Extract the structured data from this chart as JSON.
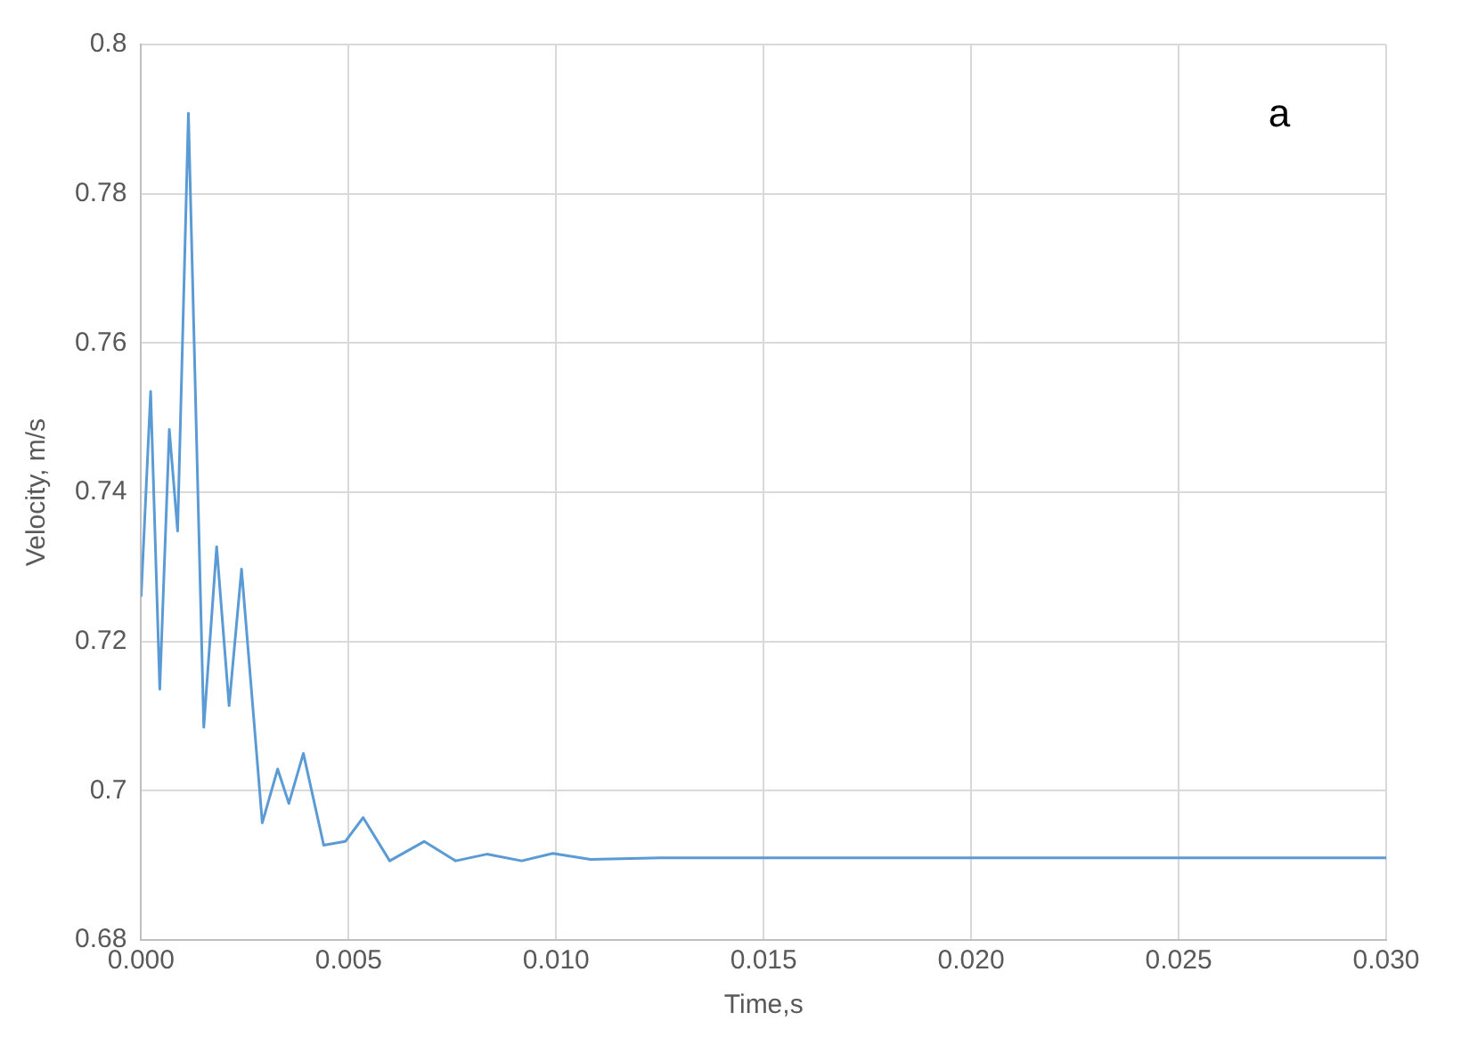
{
  "chart_data": {
    "type": "line",
    "xlabel": "Time,s",
    "ylabel": "Velocity, m/s",
    "annotations": [
      "a"
    ],
    "x": [
      0,
      0.00023,
      0.00045,
      0.00068,
      0.00088,
      0.00114,
      0.00151,
      0.00182,
      0.00212,
      0.00242,
      0.00292,
      0.00329,
      0.00356,
      0.00391,
      0.0044,
      0.00492,
      0.00535,
      0.00599,
      0.00682,
      0.00758,
      0.00833,
      0.00917,
      0.00992,
      0.01083,
      0.0125,
      0.015,
      0.02,
      0.025,
      0.03
    ],
    "series": [
      {
        "color": "#5b9bd5",
        "values": [
          0.726,
          0.7535,
          0.7136,
          0.7484,
          0.7348,
          0.7908,
          0.7085,
          0.7327,
          0.7114,
          0.7297,
          0.6957,
          0.7029,
          0.6983,
          0.705,
          0.6927,
          0.6932,
          0.6964,
          0.6906,
          0.6932,
          0.6906,
          0.6915,
          0.6906,
          0.6916,
          0.6908,
          0.691,
          0.691,
          0.691,
          0.691,
          0.691
        ]
      }
    ],
    "xlim": [
      0,
      0.03
    ],
    "xticks": [
      {
        "value": 0,
        "label": "0.000"
      },
      {
        "value": 0.005,
        "label": "0.005"
      },
      {
        "value": 0.01,
        "label": "0.010"
      },
      {
        "value": 0.015,
        "label": "0.015"
      },
      {
        "value": 0.02,
        "label": "0.020"
      },
      {
        "value": 0.025,
        "label": "0.025"
      },
      {
        "value": 0.03,
        "label": "0.030"
      }
    ],
    "ylim": [
      0.68,
      0.8
    ],
    "yticks": [
      0.68,
      0.7,
      0.72,
      0.74,
      0.76,
      0.78,
      0.8
    ],
    "grid": true,
    "legend": false,
    "marker": "none",
    "line_style": "solid"
  }
}
